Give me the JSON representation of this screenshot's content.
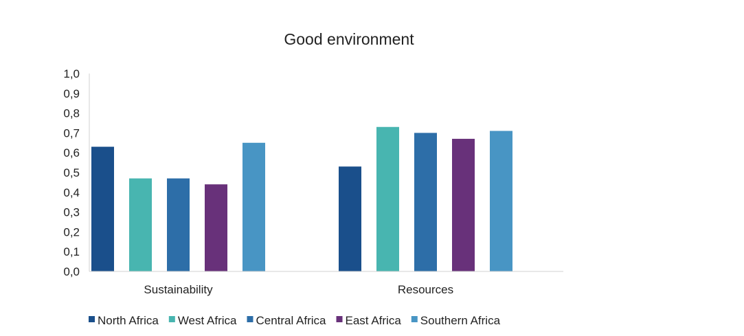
{
  "chart_data": {
    "type": "bar",
    "title": "Good environment",
    "xlabel": "",
    "ylabel": "",
    "ylim": [
      0,
      1.0
    ],
    "yticks": [
      "0,0",
      "0,1",
      "0,2",
      "0,3",
      "0,4",
      "0,5",
      "0,6",
      "0,7",
      "0,8",
      "0,9",
      "1,0"
    ],
    "grid": false,
    "legend_position": "bottom",
    "categories": [
      "Sustainability",
      "Resources"
    ],
    "series": [
      {
        "name": "North Africa",
        "color": "#1a4f8b",
        "values": [
          0.63,
          0.53
        ]
      },
      {
        "name": "West Africa",
        "color": "#48b5b0",
        "values": [
          0.47,
          0.73
        ]
      },
      {
        "name": "Central Africa",
        "color": "#2d6ea8",
        "values": [
          0.47,
          0.7
        ]
      },
      {
        "name": "East Africa",
        "color": "#68317a",
        "values": [
          0.44,
          0.67
        ]
      },
      {
        "name": "Southern Africa",
        "color": "#4895c4",
        "values": [
          0.65,
          0.71
        ]
      }
    ]
  }
}
